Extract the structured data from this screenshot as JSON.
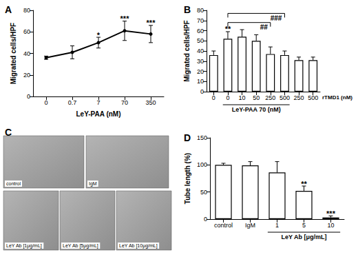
{
  "chart_data": [
    {
      "type": "line",
      "title": "A",
      "categories": [
        "0",
        "0.7",
        "7",
        "70",
        "350"
      ],
      "values": [
        36,
        41,
        50,
        61,
        58
      ],
      "errors": [
        1.5,
        6,
        5,
        9,
        8
      ],
      "annotations": [
        null,
        null,
        "*",
        "***",
        "***"
      ],
      "xlabel": "LeY-PAA (nM)",
      "ylabel": "Migrated cells/HPF",
      "ylim": [
        0,
        80
      ],
      "yticks": [
        0,
        20,
        40,
        60,
        80
      ],
      "color": "#000000",
      "marker": "circle",
      "grid": false
    },
    {
      "type": "bar",
      "title": "B",
      "categories": [
        "0",
        "0",
        "10",
        "50",
        "250",
        "500",
        "250",
        "500"
      ],
      "values": [
        36,
        52,
        54,
        50,
        37,
        36,
        31,
        31
      ],
      "errors": [
        4,
        7,
        7,
        6,
        7,
        4,
        3,
        3
      ],
      "annotations": [
        null,
        "**",
        null,
        null,
        null,
        null,
        null,
        null
      ],
      "brackets": [
        {
          "from": 1,
          "to": 4,
          "y": 68,
          "label": "##"
        },
        {
          "from": 1,
          "to": 5,
          "y": 77,
          "label": "###"
        }
      ],
      "group": {
        "label": "LeY-PAA 70 (nM)",
        "from": 1,
        "to": 5
      },
      "xlabel": "rTMD1 (nM)",
      "ylabel": "Migrated cells/HPF",
      "ylim": [
        0,
        80
      ],
      "yticks": [
        0,
        10,
        20,
        30,
        40,
        50,
        60,
        70,
        80
      ],
      "color": "#ffffff",
      "grid": false
    },
    {
      "type": "bar",
      "title": "D",
      "categories": [
        "control",
        "IgM",
        "1",
        "5",
        "10"
      ],
      "values": [
        100,
        99,
        86,
        52,
        3
      ],
      "errors": [
        3,
        7,
        20,
        9,
        3
      ],
      "annotations": [
        null,
        null,
        null,
        "**",
        "***"
      ],
      "group": {
        "label": "LeY Ab [μg/mL]",
        "from": 2,
        "to": 4
      },
      "ylabel": "Tube length (%)",
      "ylim": [
        0,
        150
      ],
      "yticks": [
        0,
        50,
        100,
        150
      ],
      "color": "#ffffff",
      "grid": false
    }
  ],
  "panel_c": {
    "title": "C",
    "images": [
      "control",
      "IgM",
      "LeY Ab [1μg/mL]",
      "LeY Ab [5μg/mL]",
      "LeY Ab [10μg/mL]"
    ]
  }
}
